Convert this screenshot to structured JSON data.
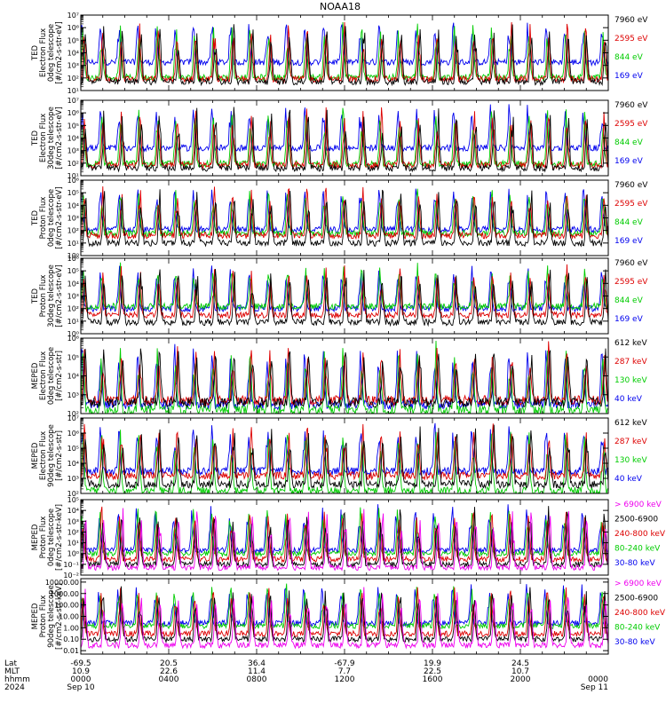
{
  "figure": {
    "title": "NOAA18",
    "x_axis": {
      "row_labels": [
        "Lat",
        "MLT",
        "hhmm",
        "2024"
      ],
      "columns": [
        {
          "lat": "-69.5",
          "mlt": "10.9",
          "hhmm": "0000",
          "date": "Sep 10"
        },
        {
          "lat": "20.5",
          "mlt": "22.6",
          "hhmm": "0400",
          "date": ""
        },
        {
          "lat": "36.4",
          "mlt": "11.4",
          "hhmm": "0800",
          "date": ""
        },
        {
          "lat": "-67.9",
          "mlt": "7.7",
          "hhmm": "1200",
          "date": ""
        },
        {
          "lat": "19.9",
          "mlt": "22.5",
          "hhmm": "1600",
          "date": ""
        },
        {
          "lat": "24.5",
          "mlt": "10.7",
          "hhmm": "2000",
          "date": ""
        },
        {
          "lat": "",
          "mlt": "",
          "hhmm": "0000",
          "date": "Sep 11"
        }
      ]
    }
  },
  "chart_data": [
    {
      "type": "line",
      "instrument": "TED",
      "ylabel": [
        "TED",
        "Electron Flux",
        "0deg telescope",
        "[#/cm2-s-str-eV]"
      ],
      "yscale": "log",
      "ylim": [
        10,
        10000000
      ],
      "ytick_labels": [
        "10¹",
        "10²",
        "10³",
        "10⁴",
        "10⁵",
        "10⁶",
        "10⁷"
      ],
      "xlim_hours": [
        0,
        24
      ],
      "series": [
        {
          "name": "7960 eV",
          "color": "#000000",
          "baseline": 50
        },
        {
          "name": "2595 eV",
          "color": "#dd0000",
          "baseline": 80
        },
        {
          "name": "844 eV",
          "color": "#00cc00",
          "baseline": 110
        },
        {
          "name": "169 eV",
          "color": "#0000ee",
          "baseline": 1800
        }
      ]
    },
    {
      "type": "line",
      "instrument": "TED",
      "ylabel": [
        "TED",
        "Electron Flux",
        "30deg telescope",
        "[#/cm2-s-str-eV]"
      ],
      "yscale": "log",
      "ylim": [
        10,
        10000000
      ],
      "ytick_labels": [
        "10¹",
        "10²",
        "10³",
        "10⁴",
        "10⁵",
        "10⁶",
        "10⁷"
      ],
      "xlim_hours": [
        0,
        24
      ],
      "series": [
        {
          "name": "7960 eV",
          "color": "#000000",
          "baseline": 40
        },
        {
          "name": "2595 eV",
          "color": "#dd0000",
          "baseline": 70
        },
        {
          "name": "844 eV",
          "color": "#00cc00",
          "baseline": 90
        },
        {
          "name": "169 eV",
          "color": "#0000ee",
          "baseline": 1600
        }
      ]
    },
    {
      "type": "line",
      "instrument": "TED",
      "ylabel": [
        "TED",
        "Proton Flux",
        "0deg telescope",
        "[#/cm2-s-str-eV]"
      ],
      "yscale": "log",
      "ylim": [
        1,
        1000000
      ],
      "ytick_labels": [
        "10⁰",
        "10¹",
        "10²",
        "10³",
        "10⁴",
        "10⁵",
        "10⁶"
      ],
      "xlim_hours": [
        0,
        24
      ],
      "series": [
        {
          "name": "7960 eV",
          "color": "#000000",
          "baseline": 10
        },
        {
          "name": "2595 eV",
          "color": "#dd0000",
          "baseline": 40
        },
        {
          "name": "844 eV",
          "color": "#00cc00",
          "baseline": 60
        },
        {
          "name": "169 eV",
          "color": "#0000ee",
          "baseline": 120
        }
      ]
    },
    {
      "type": "line",
      "instrument": "TED",
      "ylabel": [
        "TED",
        "Proton Flux",
        "30deg telescope",
        "[#/cm2-s-str-eV]"
      ],
      "yscale": "log",
      "ylim": [
        1,
        1000000
      ],
      "ytick_labels": [
        "10⁰",
        "10¹",
        "10²",
        "10³",
        "10⁴",
        "10⁵",
        "10⁶"
      ],
      "xlim_hours": [
        0,
        24
      ],
      "series": [
        {
          "name": "7960 eV",
          "color": "#000000",
          "baseline": 8
        },
        {
          "name": "2595 eV",
          "color": "#dd0000",
          "baseline": 30
        },
        {
          "name": "844 eV",
          "color": "#00cc00",
          "baseline": 150
        },
        {
          "name": "169 eV",
          "color": "#0000ee",
          "baseline": 100
        }
      ]
    },
    {
      "type": "line",
      "instrument": "MEPED",
      "ylabel": [
        "MEPED",
        "Electron Flux",
        "0deg telescope",
        "[#/cm2-s-str]"
      ],
      "yscale": "log",
      "ylim": [
        100,
        1000000
      ],
      "ytick_labels": [
        "10²",
        "10³",
        "10⁴",
        "10⁵",
        "10⁶"
      ],
      "xlim_hours": [
        0,
        24
      ],
      "series": [
        {
          "name": "612 keV",
          "color": "#000000",
          "baseline": 400
        },
        {
          "name": "287 keV",
          "color": "#dd0000",
          "baseline": 500
        },
        {
          "name": "130 keV",
          "color": "#00cc00",
          "baseline": 150
        },
        {
          "name": "40 keV",
          "color": "#0000ee",
          "baseline": 300
        }
      ]
    },
    {
      "type": "line",
      "instrument": "MEPED",
      "ylabel": [
        "MEPED",
        "Electron Flux",
        "90deg telescope",
        "[#/cm2-s-str]"
      ],
      "yscale": "log",
      "ylim": [
        100,
        10000000
      ],
      "ytick_labels": [
        "10²",
        "10³",
        "10⁴",
        "10⁵",
        "10⁶",
        "10⁷"
      ],
      "xlim_hours": [
        0,
        24
      ],
      "series": [
        {
          "name": "612 keV",
          "color": "#000000",
          "baseline": 400
        },
        {
          "name": "287 keV",
          "color": "#dd0000",
          "baseline": 1500
        },
        {
          "name": "130 keV",
          "color": "#00cc00",
          "baseline": 150
        },
        {
          "name": "40 keV",
          "color": "#0000ee",
          "baseline": 3000
        }
      ]
    },
    {
      "type": "line",
      "instrument": "MEPED",
      "ylabel": [
        "MEPED",
        "Proton Flux",
        "0deg telescope",
        "[#/cm2-s-str-keV]"
      ],
      "yscale": "log",
      "ylim": [
        0.01,
        100000
      ],
      "ytick_labels": [
        "10⁻²",
        "10⁻¹",
        "10⁰",
        "10¹",
        "10²",
        "10³",
        "10⁴",
        "10⁵"
      ],
      "xlim_hours": [
        0,
        24
      ],
      "series": [
        {
          "name": "> 6900 keV",
          "color": "#ee00ee",
          "baseline": 0.05
        },
        {
          "name": "2500-6900",
          "color": "#000000",
          "baseline": 0.1
        },
        {
          "name": "240-800 keV",
          "color": "#dd0000",
          "baseline": 0.3
        },
        {
          "name": "80-240 keV",
          "color": "#00cc00",
          "baseline": 1.0
        },
        {
          "name": "30-80 keV",
          "color": "#0000ee",
          "baseline": 2.0
        }
      ]
    },
    {
      "type": "line",
      "instrument": "MEPED",
      "ylabel": [
        "MEPED",
        "Proton Flux",
        "90deg telescope",
        "[#/cm2-s-str-keV]"
      ],
      "yscale": "log",
      "ylim": [
        0.005,
        20000
      ],
      "ytick_labels": [
        "0.01",
        "0.10",
        "1.00",
        "10.00",
        "100.00",
        "1000.00",
        "10000.00"
      ],
      "ytick_values": [
        0.01,
        0.1,
        1,
        10,
        100,
        1000,
        10000
      ],
      "xlim_hours": [
        0,
        24
      ],
      "series": [
        {
          "name": "> 6900 keV",
          "color": "#ee00ee",
          "baseline": 0.03
        },
        {
          "name": "2500-6900",
          "color": "#000000",
          "baseline": 0.1
        },
        {
          "name": "240-800 keV",
          "color": "#dd0000",
          "baseline": 0.3
        },
        {
          "name": "80-240 keV",
          "color": "#00cc00",
          "baseline": 1.5
        },
        {
          "name": "30-80 keV",
          "color": "#0000ee",
          "baseline": 2.5
        }
      ]
    }
  ]
}
